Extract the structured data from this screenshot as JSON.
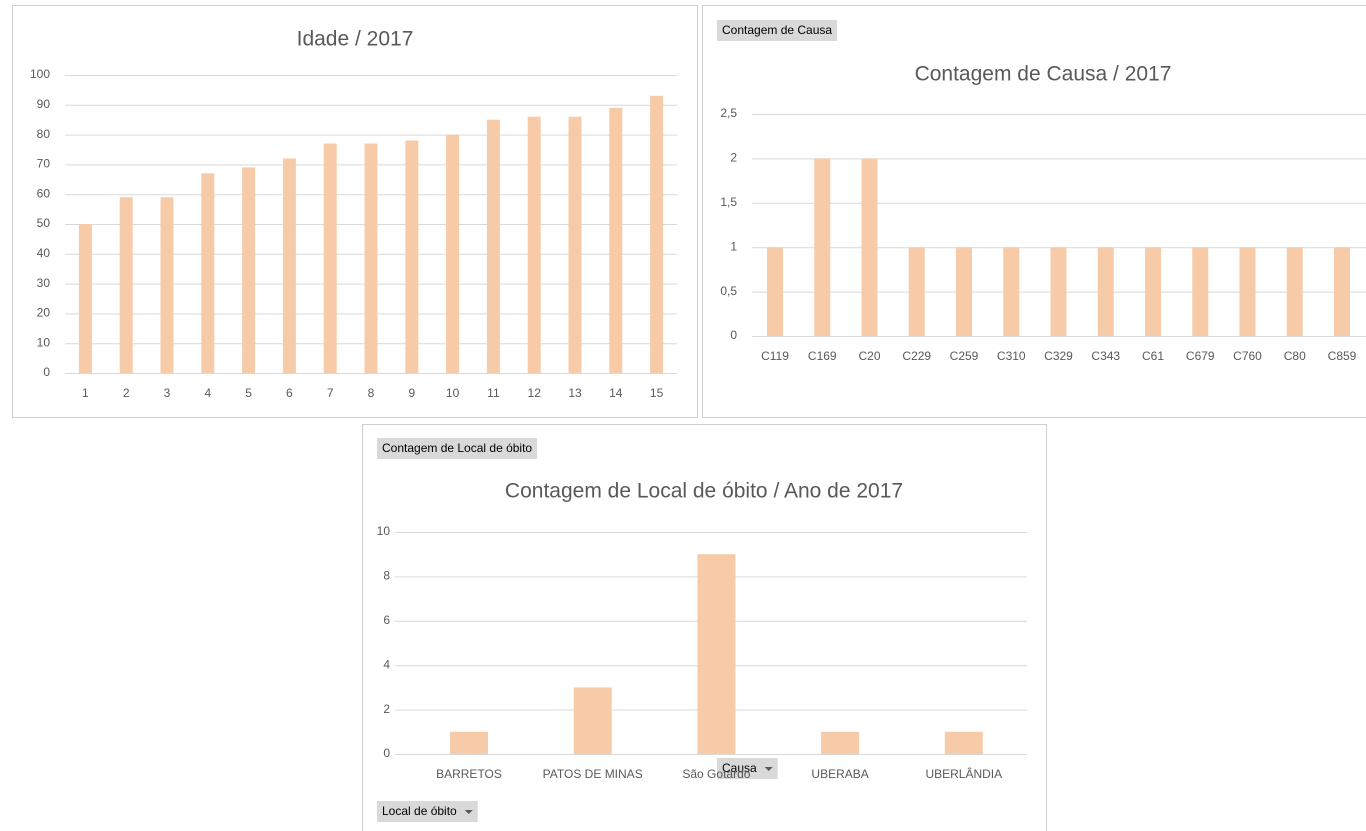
{
  "chart_data": [
    {
      "type": "bar",
      "title": "Idade / 2017",
      "categories": [
        "1",
        "2",
        "3",
        "4",
        "5",
        "6",
        "7",
        "8",
        "9",
        "10",
        "11",
        "12",
        "13",
        "14",
        "15"
      ],
      "values": [
        50,
        59,
        59,
        67,
        69,
        72,
        77,
        77,
        78,
        80,
        85,
        86,
        86,
        89,
        93
      ],
      "color": "#f8cba8",
      "ylim": [
        0,
        100
      ],
      "yticks": [
        0,
        10,
        20,
        30,
        40,
        50,
        60,
        70,
        80,
        90,
        100
      ],
      "grid": true
    },
    {
      "type": "bar",
      "title": "Contagem de Causa / 2017",
      "value_field_button": "Contagem de Causa",
      "axis_field_button": "Causa",
      "categories": [
        "C119",
        "C169",
        "C20",
        "C229",
        "C259",
        "C310",
        "C329",
        "C343",
        "C61",
        "C679",
        "C760",
        "C80",
        "C859"
      ],
      "values": [
        1,
        2,
        2,
        1,
        1,
        1,
        1,
        1,
        1,
        1,
        1,
        1,
        1
      ],
      "color": "#f8cba8",
      "ylim": [
        0,
        2.5
      ],
      "yticks": [
        0,
        {
          "value": 0.5,
          "label": "0,5"
        },
        1,
        {
          "value": 1.5,
          "label": "1,5"
        },
        2,
        {
          "value": 2.5,
          "label": "2,5"
        }
      ],
      "grid": true
    },
    {
      "type": "bar",
      "title": "Contagem de Local de óbito / Ano de 2017",
      "value_field_button": "Contagem de Local de óbito",
      "axis_field_button": "Local de óbito",
      "categories": [
        "BARRETOS",
        "PATOS DE MINAS",
        "São Gotardo",
        "UBERABA",
        "UBERLÂNDIA"
      ],
      "values": [
        1,
        3,
        9,
        1,
        1
      ],
      "color": "#f8cba8",
      "ylim": [
        0,
        10
      ],
      "yticks": [
        0,
        2,
        4,
        6,
        8,
        10
      ],
      "grid": true
    }
  ]
}
